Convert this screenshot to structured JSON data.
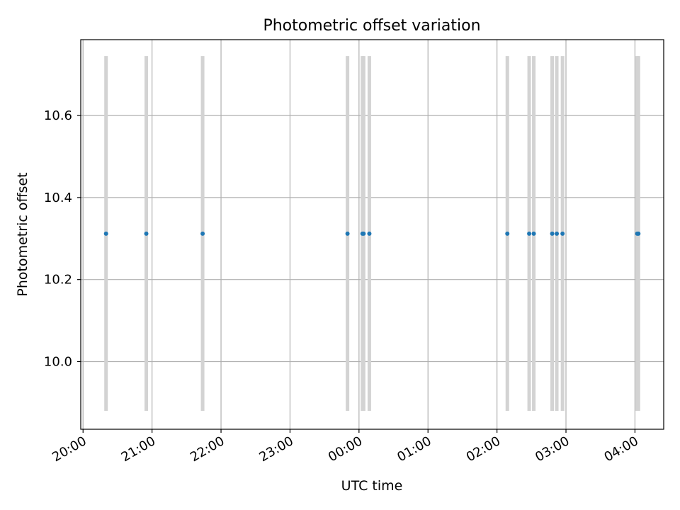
{
  "chart_data": {
    "type": "scatter",
    "title": "Photometric offset variation",
    "xlabel": "UTC time",
    "ylabel": "Photometric offset",
    "xlim": [
      "19:58",
      "04:25"
    ],
    "ylim": [
      9.835,
      10.785
    ],
    "xticks": [
      "20:00",
      "21:00",
      "22:00",
      "23:00",
      "00:00",
      "01:00",
      "02:00",
      "03:00",
      "04:00"
    ],
    "yticks": [
      "10.0",
      "10.2",
      "10.4",
      "10.6"
    ],
    "ytick_values": [
      10.0,
      10.2,
      10.4,
      10.6
    ],
    "grid": true,
    "colors": {
      "points": "#1f77b4",
      "error_bars": "#d3d3d3",
      "grid": "#b0b0b0"
    },
    "error_range": [
      9.88,
      10.745
    ],
    "x": [
      "20:20",
      "20:55",
      "21:44",
      "23:50",
      "00:03",
      "00:04",
      "00:09",
      "02:09",
      "02:28",
      "02:32",
      "02:48",
      "02:52",
      "02:57",
      "04:02",
      "04:03"
    ],
    "y": [
      10.312,
      10.312,
      10.312,
      10.312,
      10.312,
      10.312,
      10.312,
      10.312,
      10.312,
      10.312,
      10.312,
      10.312,
      10.312,
      10.312,
      10.312
    ]
  }
}
